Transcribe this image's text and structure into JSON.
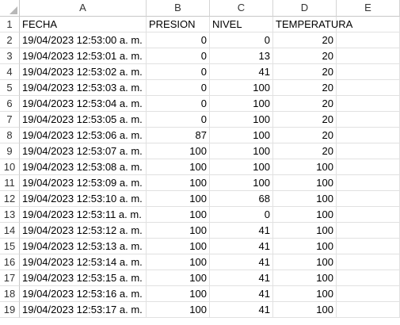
{
  "columns": [
    "A",
    "B",
    "C",
    "D",
    "E"
  ],
  "row_numbers": [
    "1",
    "2",
    "3",
    "4",
    "5",
    "6",
    "7",
    "8",
    "9",
    "10",
    "11",
    "12",
    "13",
    "14",
    "15",
    "16",
    "17",
    "18",
    "19"
  ],
  "header_row": [
    "FECHA",
    "PRESION",
    "NIVEL",
    "TEMPERATURA",
    ""
  ],
  "rows": [
    [
      "19/04/2023 12:53:00 a. m.",
      "0",
      "0",
      "20"
    ],
    [
      "19/04/2023 12:53:01 a. m.",
      "0",
      "13",
      "20"
    ],
    [
      "19/04/2023 12:53:02 a. m.",
      "0",
      "41",
      "20"
    ],
    [
      "19/04/2023 12:53:03 a. m.",
      "0",
      "100",
      "20"
    ],
    [
      "19/04/2023 12:53:04 a. m.",
      "0",
      "100",
      "20"
    ],
    [
      "19/04/2023 12:53:05 a. m.",
      "0",
      "100",
      "20"
    ],
    [
      "19/04/2023 12:53:06 a. m.",
      "87",
      "100",
      "20"
    ],
    [
      "19/04/2023 12:53:07 a. m.",
      "100",
      "100",
      "20"
    ],
    [
      "19/04/2023 12:53:08 a. m.",
      "100",
      "100",
      "100"
    ],
    [
      "19/04/2023 12:53:09 a. m.",
      "100",
      "100",
      "100"
    ],
    [
      "19/04/2023 12:53:10 a. m.",
      "100",
      "68",
      "100"
    ],
    [
      "19/04/2023 12:53:11 a. m.",
      "100",
      "0",
      "100"
    ],
    [
      "19/04/2023 12:53:12 a. m.",
      "100",
      "41",
      "100"
    ],
    [
      "19/04/2023 12:53:13 a. m.",
      "100",
      "41",
      "100"
    ],
    [
      "19/04/2023 12:53:14 a. m.",
      "100",
      "41",
      "100"
    ],
    [
      "19/04/2023 12:53:15 a. m.",
      "100",
      "41",
      "100"
    ],
    [
      "19/04/2023 12:53:16 a. m.",
      "100",
      "41",
      "100"
    ],
    [
      "19/04/2023 12:53:17 a. m.",
      "100",
      "41",
      "100"
    ]
  ]
}
